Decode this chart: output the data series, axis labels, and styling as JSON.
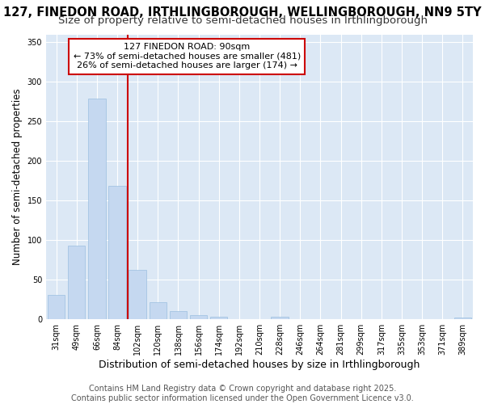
{
  "title": "127, FINEDON ROAD, IRTHLINGBOROUGH, WELLINGBOROUGH, NN9 5TY",
  "subtitle": "Size of property relative to semi-detached houses in Irthlingborough",
  "xlabel": "Distribution of semi-detached houses by size in Irthlingborough",
  "ylabel": "Number of semi-detached properties",
  "categories": [
    "31sqm",
    "49sqm",
    "66sqm",
    "84sqm",
    "102sqm",
    "120sqm",
    "138sqm",
    "156sqm",
    "174sqm",
    "192sqm",
    "210sqm",
    "228sqm",
    "246sqm",
    "264sqm",
    "281sqm",
    "299sqm",
    "317sqm",
    "335sqm",
    "353sqm",
    "371sqm",
    "389sqm"
  ],
  "values": [
    30,
    93,
    279,
    168,
    62,
    21,
    10,
    5,
    3,
    0,
    0,
    3,
    0,
    0,
    0,
    0,
    0,
    0,
    0,
    0,
    2
  ],
  "bar_color": "#c5d8f0",
  "bar_edge_color": "#9bbfe0",
  "vline_x": 3.5,
  "vline_color": "#cc0000",
  "annot_line1": "127 FINEDON ROAD: 90sqm",
  "annot_line2": "← 73% of semi-detached houses are smaller (481)",
  "annot_line3": "26% of semi-detached houses are larger (174) →",
  "annotation_box_color": "#ffffff",
  "annotation_box_edge": "#cc0000",
  "ylim": [
    0,
    360
  ],
  "yticks": [
    0,
    50,
    100,
    150,
    200,
    250,
    300,
    350
  ],
  "background_color": "#dce8f5",
  "footer_text": "Contains HM Land Registry data © Crown copyright and database right 2025.\nContains public sector information licensed under the Open Government Licence v3.0.",
  "title_fontsize": 10.5,
  "subtitle_fontsize": 9.5,
  "xlabel_fontsize": 9,
  "ylabel_fontsize": 8.5,
  "tick_fontsize": 7,
  "annotation_fontsize": 8,
  "footer_fontsize": 7
}
